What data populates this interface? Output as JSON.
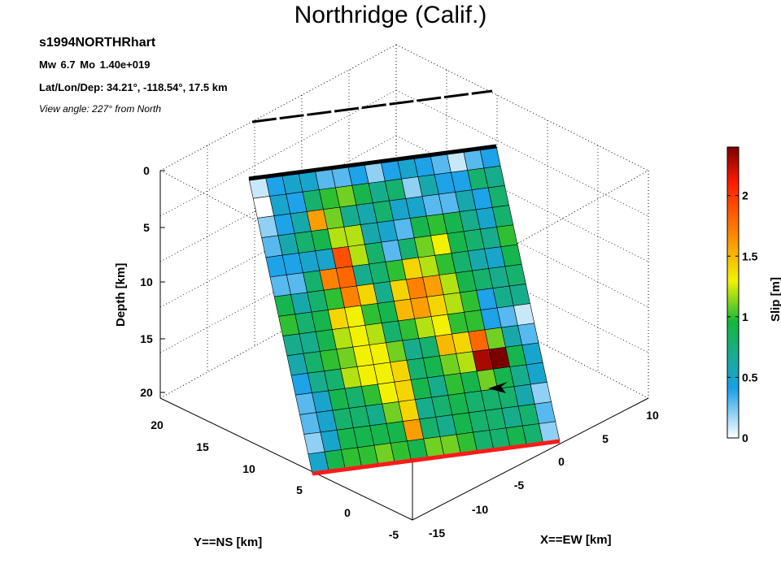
{
  "header": {
    "title": "Northridge (Calif.)",
    "event_id": "s1994NORTHRhart",
    "magnitude_line": "Mw 6.7    Mo 1.40e+019",
    "location_line": "Lat/Lon/Dep: 34.21°, -118.54°, 17.5 km",
    "view_line": "View angle: 227° from North"
  },
  "chart_data": {
    "type": "heatmap",
    "title": "Northridge (Calif.)",
    "ylabel": "Depth [km]",
    "x_axis_label": "X==EW [km]",
    "y_axis_label": "Y==NS [km]",
    "colorbar_label": "Slip [m]",
    "depth_ticks": [
      "0",
      "5",
      "10",
      "15",
      "20"
    ],
    "ns_ticks": [
      "20",
      "15",
      "10",
      "5",
      "0",
      "-5"
    ],
    "ew_ticks": [
      "-15",
      "-10",
      "-5",
      "0",
      "5",
      "10"
    ],
    "colorbar_ticks": [
      "0",
      "0.5",
      "1",
      "1.5",
      "2"
    ],
    "colorbar_range": [
      0,
      2.4
    ],
    "colormap": [
      "#ffffff",
      "#1aa0e8",
      "#15b83a",
      "#f2f200",
      "#ff7a00",
      "#ff1a00",
      "#7a0000"
    ],
    "fault_top_color": "#000000",
    "fault_bottom_color": "#ff1a1a",
    "slip_grid": [
      [
        0.1,
        0.4,
        0.5,
        0.5,
        0.3,
        0.3,
        0.4,
        0.2,
        0.4,
        0.5,
        0.4,
        0.3,
        0.1,
        0.3,
        0.4
      ],
      [
        0.0,
        0.5,
        0.4,
        0.8,
        1.0,
        1.1,
        0.9,
        0.7,
        0.8,
        0.2,
        0.6,
        0.4,
        0.4,
        0.8,
        0.7
      ],
      [
        0.2,
        0.4,
        0.6,
        1.6,
        1.1,
        0.7,
        0.6,
        0.8,
        0.5,
        0.5,
        0.3,
        0.3,
        0.6,
        0.4,
        0.8
      ],
      [
        0.3,
        0.6,
        0.8,
        0.9,
        1.2,
        1.2,
        0.6,
        0.5,
        0.3,
        0.9,
        1.0,
        0.9,
        0.7,
        0.5,
        0.8
      ],
      [
        0.4,
        0.4,
        0.5,
        0.5,
        1.9,
        1.2,
        0.8,
        0.3,
        0.8,
        1.1,
        1.3,
        0.9,
        0.8,
        0.7,
        1.0
      ],
      [
        0.3,
        0.3,
        0.8,
        1.7,
        1.8,
        0.7,
        0.8,
        1.0,
        1.4,
        1.2,
        1.0,
        0.8,
        0.6,
        0.5,
        0.9
      ],
      [
        0.9,
        0.6,
        0.8,
        1.0,
        1.7,
        1.4,
        0.7,
        1.4,
        1.7,
        1.6,
        1.2,
        0.9,
        0.8,
        0.7,
        0.8
      ],
      [
        1.0,
        0.8,
        0.9,
        1.4,
        1.3,
        1.0,
        0.9,
        1.5,
        1.6,
        1.4,
        1.2,
        1.0,
        0.4,
        0.7,
        0.7
      ],
      [
        0.7,
        0.7,
        0.9,
        1.2,
        1.3,
        1.2,
        0.8,
        1.0,
        1.2,
        1.3,
        1.0,
        1.0,
        0.4,
        0.3,
        0.1
      ],
      [
        0.6,
        0.8,
        1.0,
        1.1,
        1.3,
        1.3,
        1.1,
        0.7,
        0.8,
        1.5,
        1.4,
        1.8,
        1.1,
        0.6,
        0.3
      ],
      [
        0.4,
        0.7,
        0.8,
        1.2,
        1.3,
        1.3,
        1.4,
        0.8,
        0.9,
        1.1,
        1.2,
        2.3,
        2.4,
        0.9,
        0.5
      ],
      [
        0.3,
        0.5,
        0.9,
        0.8,
        1.0,
        1.3,
        1.4,
        0.9,
        0.7,
        1.0,
        0.9,
        1.1,
        0.9,
        0.7,
        0.5
      ],
      [
        0.3,
        0.5,
        0.8,
        0.8,
        0.7,
        1.1,
        1.4,
        0.7,
        0.8,
        0.9,
        0.8,
        0.8,
        0.8,
        0.6,
        0.2
      ],
      [
        0.2,
        0.5,
        0.9,
        0.9,
        0.9,
        0.9,
        1.6,
        0.8,
        0.7,
        0.9,
        0.8,
        0.8,
        0.7,
        0.8,
        0.3
      ],
      [
        0.5,
        0.9,
        1.0,
        1.0,
        1.1,
        1.0,
        0.9,
        1.1,
        1.1,
        1.0,
        0.8,
        0.8,
        0.9,
        0.8,
        0.2
      ]
    ]
  }
}
